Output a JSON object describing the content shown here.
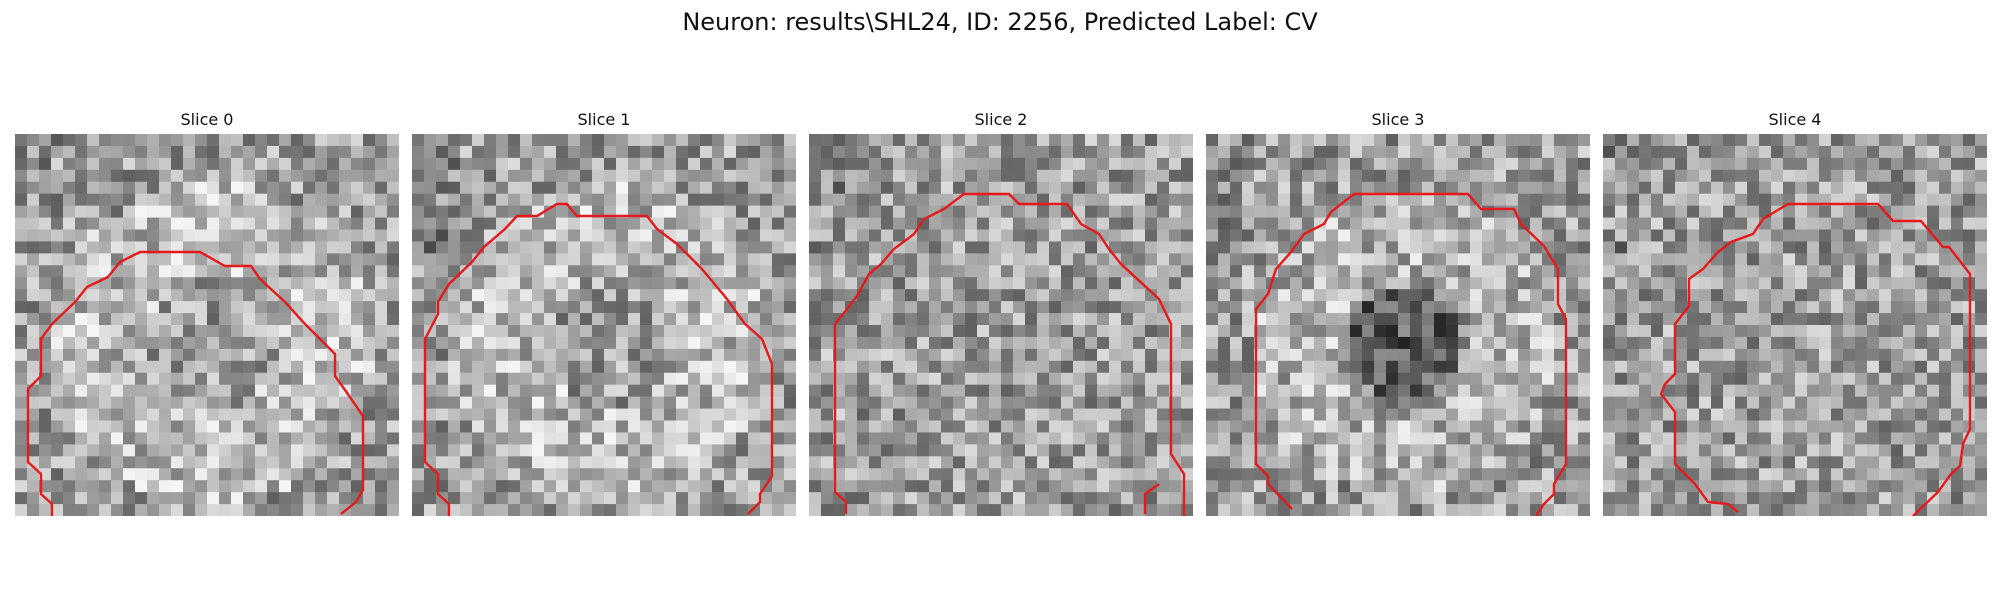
{
  "figure": {
    "title": "Neuron: results\\SHL24, ID: 2256, Predicted Label: CV",
    "outline_color": "#e41a1c"
  },
  "slices": [
    {
      "label": "Slice 0",
      "seed": 11,
      "texture": "bright-ring"
    },
    {
      "label": "Slice 1",
      "seed": 23,
      "texture": "bright-ring"
    },
    {
      "label": "Slice 2",
      "seed": 37,
      "texture": "noisy"
    },
    {
      "label": "Slice 3",
      "seed": 41,
      "texture": "dark-core"
    },
    {
      "label": "Slice 4",
      "seed": 53,
      "texture": "noisy"
    }
  ]
}
